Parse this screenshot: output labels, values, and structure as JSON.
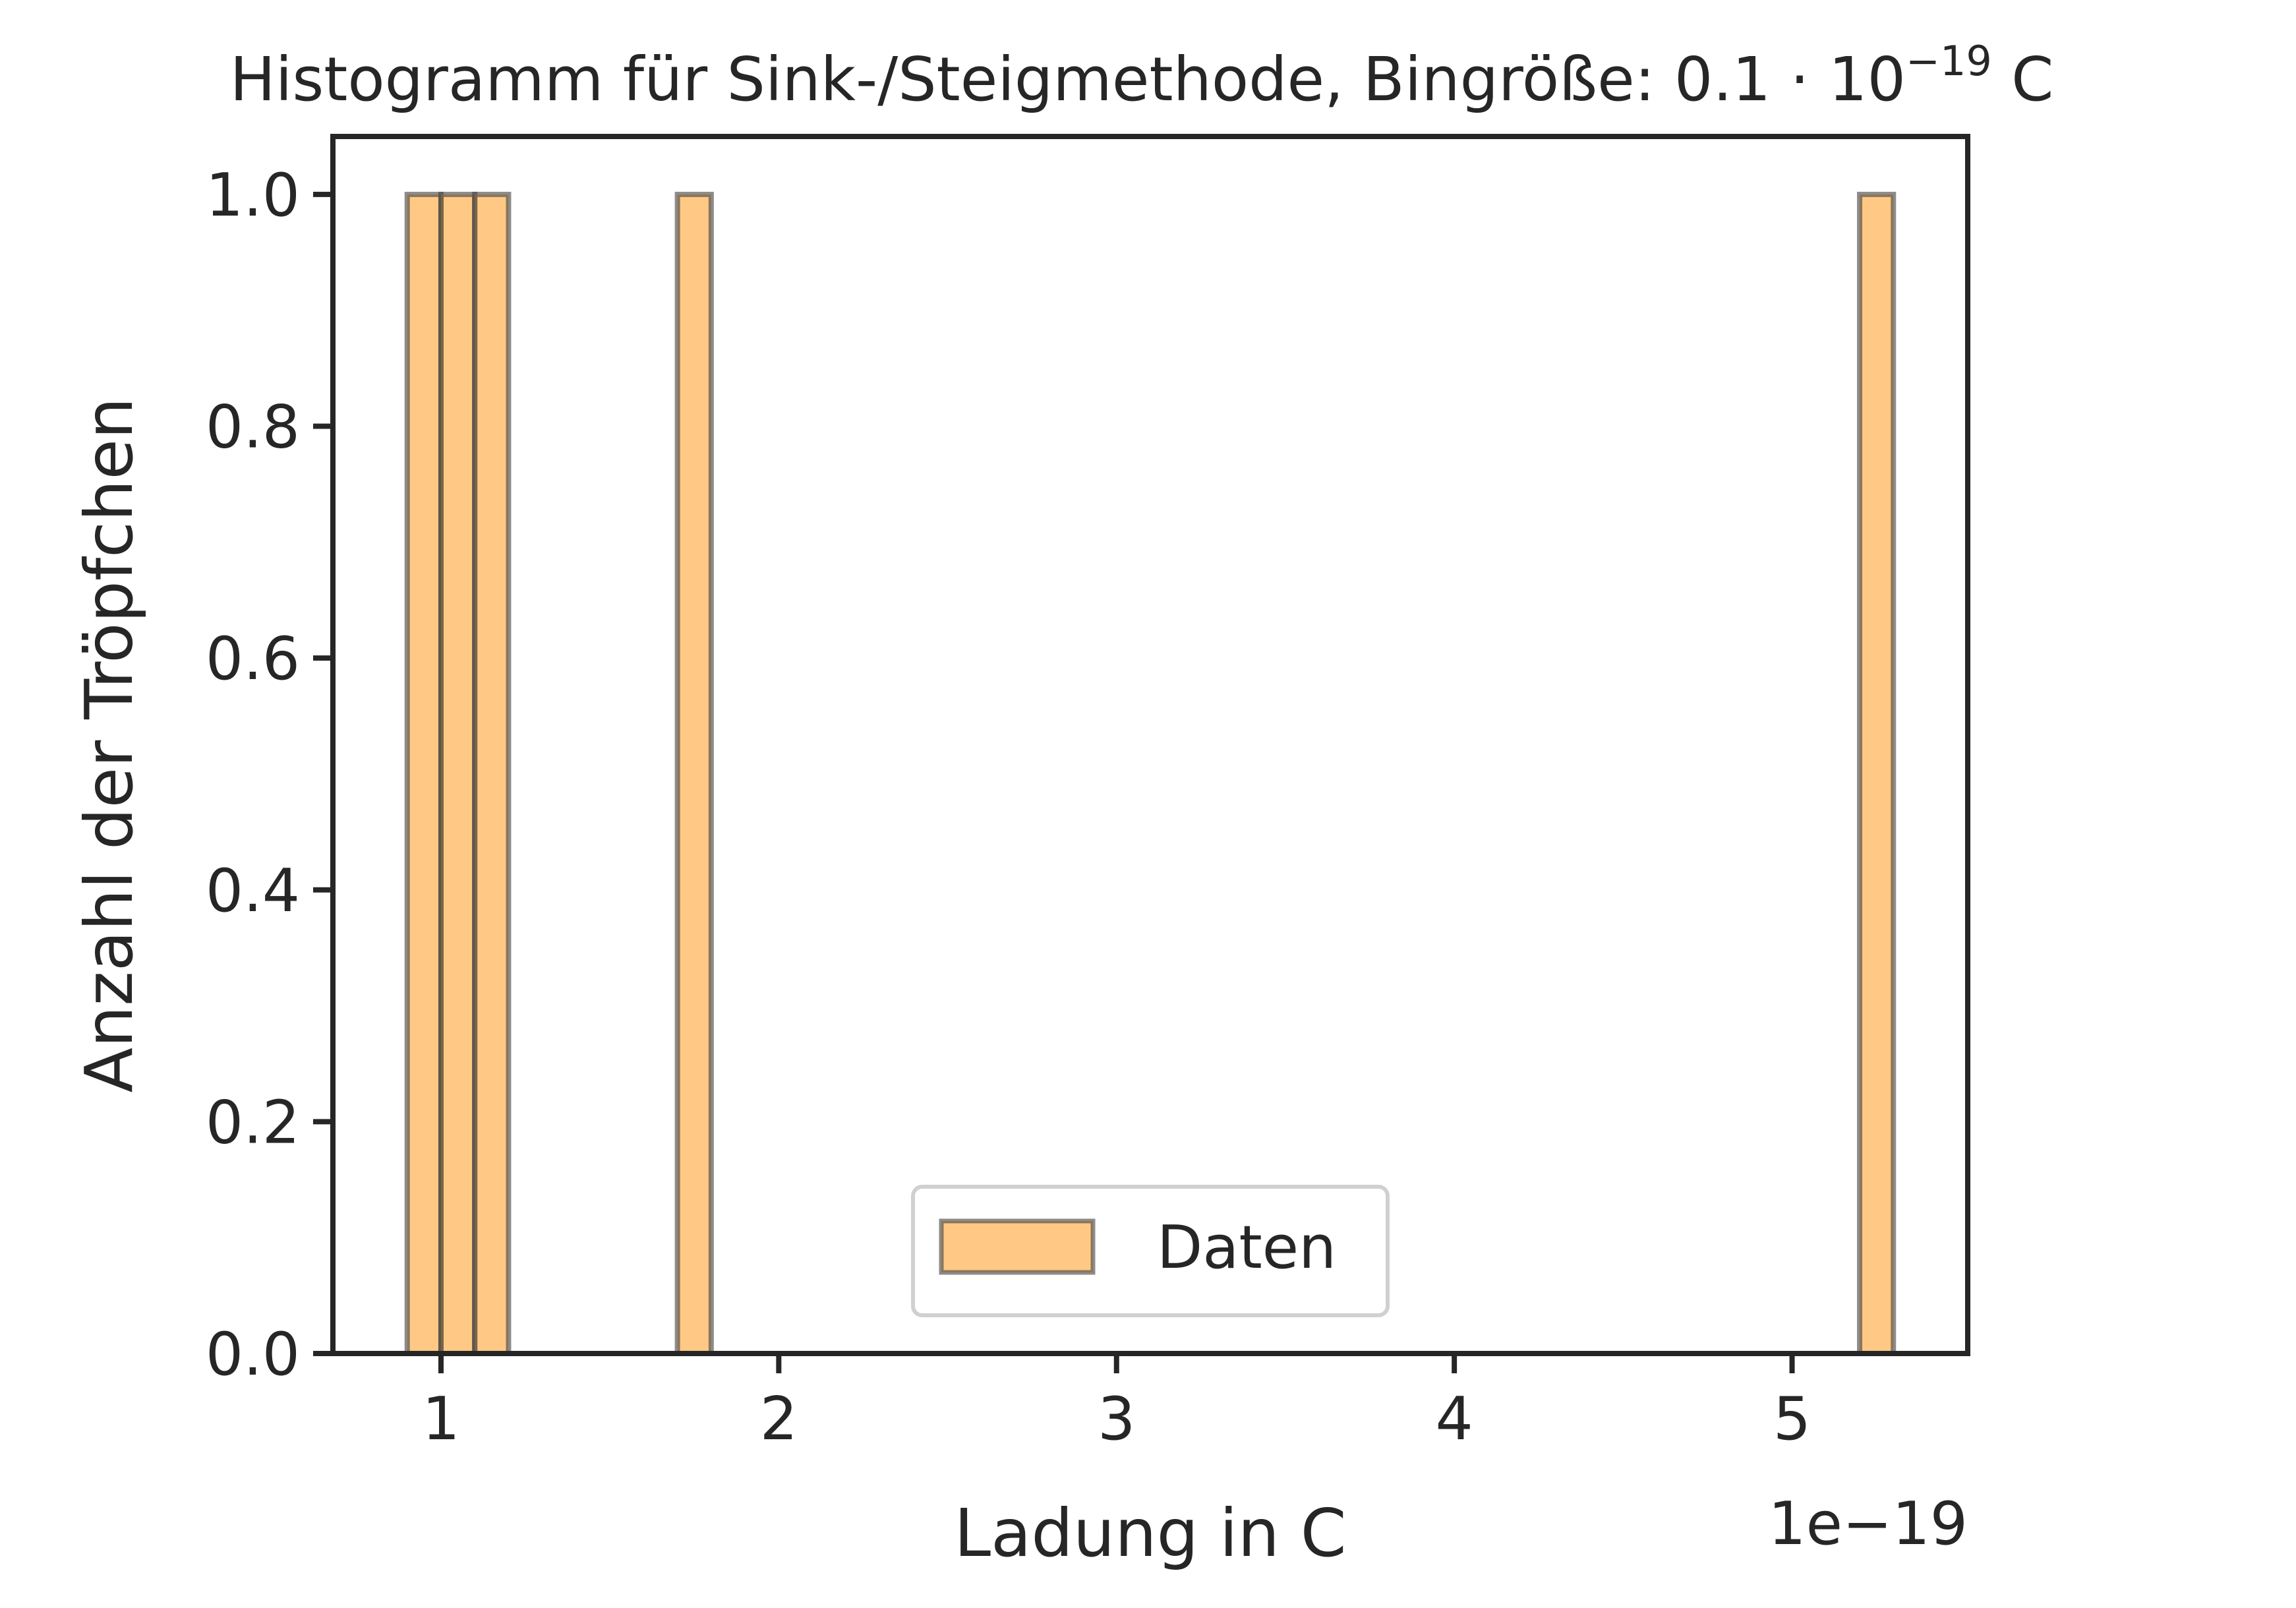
{
  "chart_data": {
    "type": "bar",
    "title": "Histogramm für Sink-/Steigmethode, Bingröße: 0.1 · 10⁻¹⁹ C",
    "title_parts": {
      "prefix": "Histogramm für Sink-/Steigmethode, Bingröße: 0.1 · 10",
      "exponent": "−19",
      "suffix": " C"
    },
    "xlabel": "Ladung in C",
    "ylabel": "Anzahl der Tröpfchen",
    "x_offset_label": "1e−19",
    "xlim": [
      0.68,
      5.52
    ],
    "ylim": [
      0,
      1.05
    ],
    "xticks": [
      1,
      2,
      3,
      4,
      5
    ],
    "yticks": [
      0.0,
      0.2,
      0.4,
      0.6,
      0.8,
      1.0
    ],
    "ytick_labels": [
      "0.0",
      "0.2",
      "0.4",
      "0.6",
      "0.8",
      "1.0"
    ],
    "xtick_labels": [
      "1",
      "2",
      "3",
      "4",
      "5"
    ],
    "bin_width": 0.1,
    "bins": [
      {
        "start": 0.9,
        "count": 1
      },
      {
        "start": 1.0,
        "count": 1
      },
      {
        "start": 1.1,
        "count": 1
      },
      {
        "start": 1.7,
        "count": 1
      },
      {
        "start": 5.2,
        "count": 1
      }
    ],
    "series": [
      {
        "name": "Daten",
        "color": "#ffa534",
        "edge_color": "#404040"
      }
    ],
    "grid": false,
    "legend_position": "lower center"
  }
}
